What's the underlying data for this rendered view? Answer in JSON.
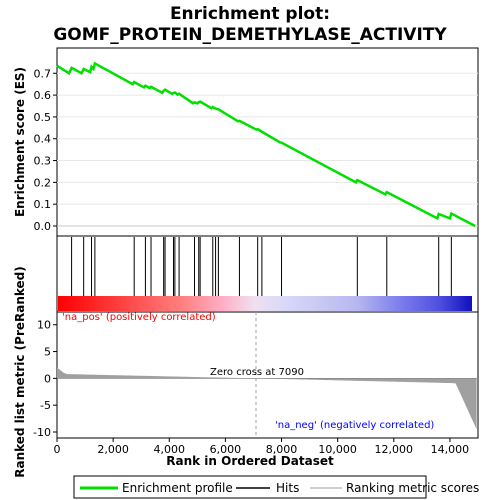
{
  "chart_data": {
    "type": "line",
    "title_line1": "Enrichment plot:",
    "title_line2": "GOMF_PROTEIN_DEMETHYLASE_ACTIVITY",
    "ylabel_top": "Enrichment score (ES)",
    "ylabel_bottom": "Ranked list metric (PreRanked)",
    "xlabel": "Rank in Ordered Dataset",
    "x_range": [
      0,
      15000
    ],
    "x_ticks": [
      0,
      2000,
      4000,
      6000,
      8000,
      10000,
      12000,
      14000
    ],
    "x_tick_labels": [
      "0",
      "2,000",
      "4,000",
      "6,000",
      "8,000",
      "10,000",
      "12,000",
      "14,000"
    ],
    "es_ylim": [
      0,
      0.77
    ],
    "es_ticks": [
      0.0,
      0.1,
      0.2,
      0.3,
      0.4,
      0.5,
      0.6,
      0.7
    ],
    "es_tick_labels": [
      "0.0",
      "0.1",
      "0.2",
      "0.3",
      "0.4",
      "0.5",
      "0.6",
      "0.7"
    ],
    "metric_ylim": [
      -10,
      12
    ],
    "metric_ticks": [
      10,
      5,
      0,
      -5,
      -10
    ],
    "metric_tick_labels": [
      "10",
      "5",
      "0",
      "-5",
      "-10"
    ],
    "hits": [
      520,
      950,
      1230,
      1350,
      2750,
      3150,
      3350,
      3800,
      3850,
      4150,
      4200,
      4350,
      4900,
      5050,
      5100,
      5550,
      5650,
      5750,
      6500,
      7150,
      7300,
      8000,
      10700,
      11750,
      13600,
      14050
    ],
    "es_curve": {
      "x": [
        0,
        430,
        520,
        870,
        950,
        1180,
        1230,
        1300,
        1350,
        2700,
        2750,
        3100,
        3150,
        3300,
        3350,
        3750,
        3800,
        3850,
        4100,
        4150,
        4200,
        4300,
        4350,
        4850,
        4900,
        5000,
        5050,
        5100,
        5500,
        5550,
        5650,
        5750,
        6450,
        6500,
        7100,
        7150,
        7300,
        7950,
        8000,
        10650,
        10700,
        11700,
        11750,
        13550,
        13600,
        14000,
        14050,
        14900
      ],
      "y": [
        0.735,
        0.7,
        0.725,
        0.7,
        0.72,
        0.705,
        0.73,
        0.72,
        0.745,
        0.65,
        0.66,
        0.635,
        0.643,
        0.632,
        0.638,
        0.61,
        0.62,
        0.625,
        0.606,
        0.61,
        0.612,
        0.602,
        0.606,
        0.562,
        0.567,
        0.562,
        0.568,
        0.57,
        0.54,
        0.545,
        0.538,
        0.535,
        0.48,
        0.482,
        0.442,
        0.444,
        0.432,
        0.383,
        0.382,
        0.2,
        0.21,
        0.145,
        0.155,
        0.035,
        0.055,
        0.035,
        0.057,
        0.0
      ]
    },
    "zero_cross_label": "Zero cross at 7090",
    "zero_cross": 7090,
    "pos_label": "'na_pos' (positively correlated)",
    "neg_label": "'na_neg' (negatively correlated)",
    "legend": [
      "Enrichment profile",
      "Hits",
      "Ranking metric scores"
    ],
    "colors": {
      "es_line": "#00e000",
      "hits": "#000000",
      "metric_fill": "#a0a0a0",
      "pos_text": "#ff0000",
      "neg_text": "#0000ff",
      "bar_red": "#ff3a3a",
      "bar_blue": "#3030e0"
    }
  }
}
